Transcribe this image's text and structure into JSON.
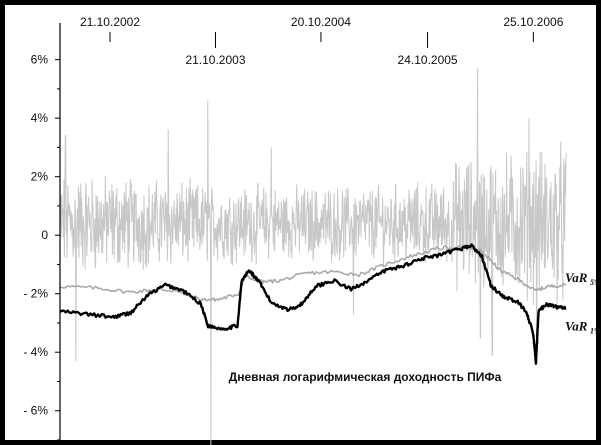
{
  "chart_data": {
    "type": "line",
    "title": "",
    "annotation": "Дневная логарифмическая доходность ПИФа",
    "x_axis": {
      "type": "date",
      "start": "2002-05-01",
      "end": "2007-02-15",
      "top_ticks": [
        "21.10.2002",
        "20.10.2004",
        "25.10.2006"
      ],
      "inner_ticks": [
        "21.10.2003",
        "24.10.2005"
      ]
    },
    "y_axis": {
      "ylim": [
        -7.0,
        6.5
      ],
      "unit": "%",
      "ticks": [
        {
          "value": 6,
          "label": "6%"
        },
        {
          "value": 4,
          "label": "4%"
        },
        {
          "value": 2,
          "label": "2%"
        },
        {
          "value": 0,
          "label": "0"
        },
        {
          "value": -2,
          "label": "- 2%"
        },
        {
          "value": -4,
          "label": "- 4%"
        },
        {
          "value": -6,
          "label": "- 6%"
        }
      ]
    },
    "grid": false,
    "series": [
      {
        "name": "Дневная логарифмическая доходность ПИФа",
        "color": "#c8c8c8",
        "style": "daily-noise",
        "x_start": "2002-05-01",
        "x_end": "2007-02-15",
        "base_amplitude": 0.9,
        "spikes": [
          {
            "x": "2002-05-20",
            "y": 3.4
          },
          {
            "x": "2002-06-25",
            "y": -4.3
          },
          {
            "x": "2003-05-10",
            "y": 3.6
          },
          {
            "x": "2003-09-25",
            "y": 4.6
          },
          {
            "x": "2003-10-05",
            "y": -7.2
          },
          {
            "x": "2004-05-01",
            "y": 3.0
          },
          {
            "x": "2005-02-10",
            "y": -2.7
          },
          {
            "x": "2006-04-15",
            "y": 5.7
          },
          {
            "x": "2006-04-25",
            "y": -3.5
          },
          {
            "x": "2006-06-05",
            "y": -4.1
          },
          {
            "x": "2006-10-10",
            "y": 4.0
          },
          {
            "x": "2006-11-05",
            "y": -4.3
          }
        ]
      },
      {
        "name": "VaR 5%",
        "color": "#a9a9a9",
        "points": [
          [
            "2002-05-01",
            -1.75
          ],
          [
            "2002-09-01",
            -1.8
          ],
          [
            "2003-01-01",
            -1.95
          ],
          [
            "2003-04-01",
            -1.85
          ],
          [
            "2003-06-01",
            -1.9
          ],
          [
            "2003-09-01",
            -2.2
          ],
          [
            "2003-11-01",
            -2.2
          ],
          [
            "2004-01-10",
            -2.0
          ],
          [
            "2004-02-01",
            -1.4
          ],
          [
            "2004-04-01",
            -1.6
          ],
          [
            "2004-06-01",
            -1.55
          ],
          [
            "2004-09-01",
            -1.3
          ],
          [
            "2004-12-01",
            -1.25
          ],
          [
            "2005-03-01",
            -1.35
          ],
          [
            "2005-06-01",
            -1.0
          ],
          [
            "2005-09-01",
            -0.7
          ],
          [
            "2005-12-01",
            -0.45
          ],
          [
            "2006-03-01",
            -0.4
          ],
          [
            "2006-05-01",
            -0.55
          ],
          [
            "2006-07-01",
            -1.2
          ],
          [
            "2006-09-01",
            -1.5
          ],
          [
            "2006-11-01",
            -1.9
          ],
          [
            "2006-12-15",
            -1.75
          ],
          [
            "2007-02-15",
            -1.7
          ]
        ]
      },
      {
        "name": "VaR 1%",
        "color": "#000000",
        "points": [
          [
            "2002-05-01",
            -2.6
          ],
          [
            "2002-08-01",
            -2.7
          ],
          [
            "2002-11-01",
            -2.8
          ],
          [
            "2003-01-01",
            -2.65
          ],
          [
            "2003-03-01",
            -2.05
          ],
          [
            "2003-05-01",
            -1.7
          ],
          [
            "2003-07-01",
            -1.9
          ],
          [
            "2003-09-01",
            -2.35
          ],
          [
            "2003-09-25",
            -3.1
          ],
          [
            "2003-11-15",
            -3.2
          ],
          [
            "2004-01-05",
            -3.1
          ],
          [
            "2004-01-20",
            -1.55
          ],
          [
            "2004-02-15",
            -1.2
          ],
          [
            "2004-03-20",
            -1.6
          ],
          [
            "2004-05-01",
            -2.3
          ],
          [
            "2004-07-01",
            -2.55
          ],
          [
            "2004-08-15",
            -2.35
          ],
          [
            "2004-10-01",
            -1.75
          ],
          [
            "2004-12-01",
            -1.55
          ],
          [
            "2005-02-01",
            -1.85
          ],
          [
            "2005-04-01",
            -1.55
          ],
          [
            "2005-06-01",
            -1.2
          ],
          [
            "2005-08-01",
            -1.05
          ],
          [
            "2005-10-01",
            -0.8
          ],
          [
            "2005-12-01",
            -0.7
          ],
          [
            "2006-02-01",
            -0.5
          ],
          [
            "2006-03-25",
            -0.35
          ],
          [
            "2006-05-01",
            -0.75
          ],
          [
            "2006-06-01",
            -1.75
          ],
          [
            "2006-07-15",
            -2.1
          ],
          [
            "2006-09-01",
            -2.3
          ],
          [
            "2006-10-01",
            -2.6
          ],
          [
            "2006-10-25",
            -3.4
          ],
          [
            "2006-11-03",
            -4.4
          ],
          [
            "2006-11-12",
            -2.6
          ],
          [
            "2006-12-10",
            -2.35
          ],
          [
            "2007-01-10",
            -2.45
          ],
          [
            "2007-02-15",
            -2.5
          ]
        ]
      }
    ],
    "series_labels": [
      {
        "series": "VaR 5%",
        "main": "VaR",
        "sub": "5%",
        "y": -1.6
      },
      {
        "series": "VaR 1%",
        "main": "VaR",
        "sub": "1%",
        "y": -3.25
      }
    ]
  }
}
